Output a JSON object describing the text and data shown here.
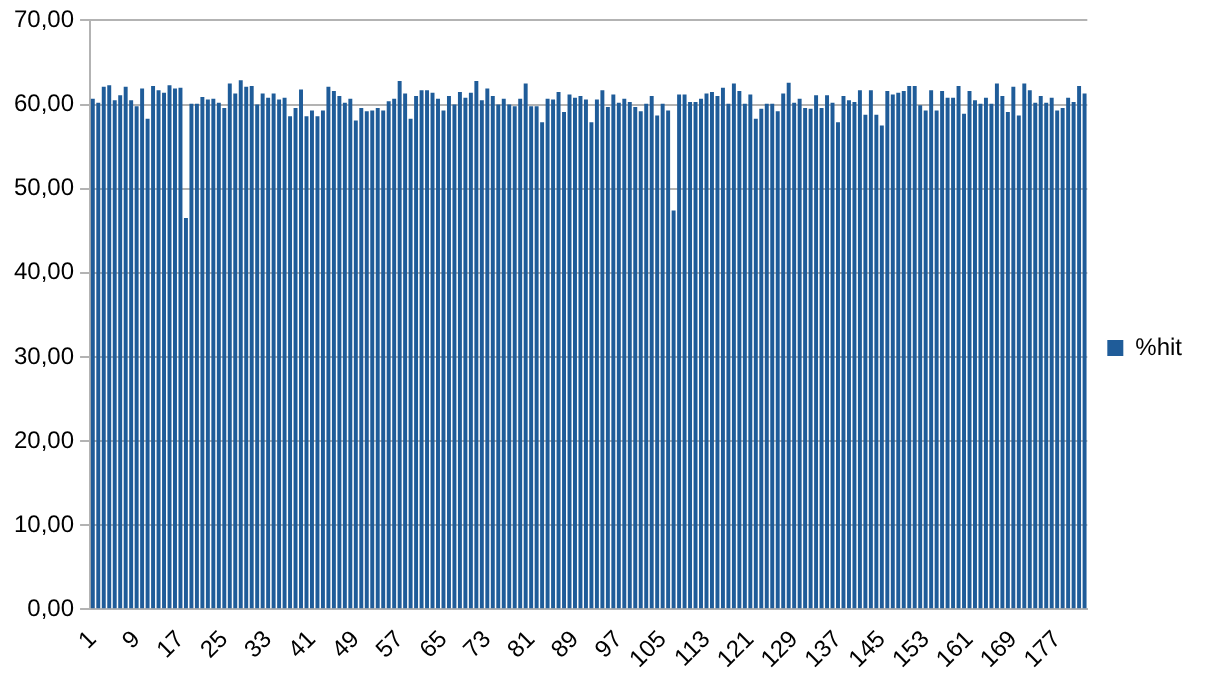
{
  "chart_data": {
    "type": "bar",
    "categories": [
      "1",
      null,
      null,
      null,
      null,
      null,
      null,
      null,
      "9",
      null,
      null,
      null,
      null,
      null,
      null,
      null,
      "17",
      null,
      null,
      null,
      null,
      null,
      null,
      null,
      "25",
      null,
      null,
      null,
      null,
      null,
      null,
      null,
      "33",
      null,
      null,
      null,
      null,
      null,
      null,
      null,
      "41",
      null,
      null,
      null,
      null,
      null,
      null,
      null,
      "49",
      null,
      null,
      null,
      null,
      null,
      null,
      null,
      "57",
      null,
      null,
      null,
      null,
      null,
      null,
      null,
      "65",
      null,
      null,
      null,
      null,
      null,
      null,
      null,
      "73",
      null,
      null,
      null,
      null,
      null,
      null,
      null,
      "81",
      null,
      null,
      null,
      null,
      null,
      null,
      null,
      "89",
      null,
      null,
      null,
      null,
      null,
      null,
      null,
      "97",
      null,
      null,
      null,
      null,
      null,
      null,
      null,
      "105",
      null,
      null,
      null,
      null,
      null,
      null,
      null,
      "113",
      null,
      null,
      null,
      null,
      null,
      null,
      null,
      "121",
      null,
      null,
      null,
      null,
      null,
      null,
      null,
      "129",
      null,
      null,
      null,
      null,
      null,
      null,
      null,
      "137",
      null,
      null,
      null,
      null,
      null,
      null,
      null,
      "145",
      null,
      null,
      null,
      null,
      null,
      null,
      null,
      "153",
      null,
      null,
      null,
      null,
      null,
      null,
      null,
      "161",
      null,
      null,
      null,
      null,
      null,
      null,
      null,
      "169",
      null,
      null,
      null,
      null,
      null,
      null,
      null,
      "177",
      null,
      null,
      null,
      null,
      null
    ],
    "series": [
      {
        "name": "%hit",
        "color": "#1f5c99",
        "values": [
          60.7,
          60.2,
          62.1,
          62.3,
          60.5,
          61.1,
          62.1,
          60.5,
          59.8,
          61.9,
          58.3,
          62.2,
          61.7,
          61.4,
          62.3,
          61.9,
          62.0,
          46.5,
          60.1,
          60.1,
          60.9,
          60.6,
          60.7,
          60.2,
          59.6,
          62.5,
          61.3,
          62.9,
          62.1,
          62.2,
          60.0,
          61.3,
          60.8,
          61.3,
          60.6,
          60.8,
          58.6,
          59.6,
          61.8,
          58.6,
          59.3,
          58.6,
          59.3,
          62.1,
          61.6,
          61.0,
          60.2,
          60.7,
          58.1,
          59.6,
          59.2,
          59.3,
          59.6,
          59.3,
          60.4,
          60.7,
          62.8,
          61.3,
          58.3,
          61.0,
          61.7,
          61.7,
          61.4,
          60.7,
          59.3,
          61.0,
          60.0,
          61.5,
          60.8,
          61.4,
          62.8,
          60.5,
          61.9,
          61.0,
          60.0,
          60.7,
          60.0,
          59.8,
          60.7,
          62.5,
          59.8,
          59.8,
          57.9,
          60.7,
          60.6,
          61.5,
          59.1,
          61.2,
          60.8,
          61.0,
          60.6,
          57.9,
          60.6,
          61.7,
          59.7,
          61.2,
          60.2,
          60.7,
          60.3,
          59.7,
          59.2,
          60.1,
          61.0,
          58.7,
          60.1,
          59.3,
          47.4,
          61.2,
          61.2,
          60.3,
          60.3,
          60.7,
          61.3,
          61.5,
          61.0,
          62.0,
          60.1,
          62.5,
          61.6,
          60.1,
          61.2,
          58.3,
          59.5,
          60.1,
          60.1,
          59.2,
          61.3,
          62.6,
          60.2,
          60.7,
          59.6,
          59.5,
          61.1,
          59.6,
          61.1,
          60.2,
          57.9,
          61.0,
          60.5,
          60.3,
          61.7,
          58.8,
          61.7,
          58.8,
          57.5,
          61.6,
          61.2,
          61.4,
          61.6,
          62.2,
          62.2,
          59.9,
          59.3,
          61.7,
          59.3,
          61.6,
          60.8,
          60.8,
          62.2,
          58.9,
          61.6,
          60.5,
          60.1,
          60.8,
          60.1,
          62.5,
          61.0,
          59.1,
          62.1,
          58.7,
          62.5,
          61.7,
          60.2,
          61.0,
          60.2,
          60.8,
          59.3,
          59.6,
          60.8,
          60.3,
          62.2,
          61.3
        ]
      }
    ],
    "ylim": [
      0,
      70
    ],
    "yticks": [
      {
        "value": 0,
        "label": "0,00"
      },
      {
        "value": 10,
        "label": "10,00"
      },
      {
        "value": 20,
        "label": "20,00"
      },
      {
        "value": 30,
        "label": "30,00"
      },
      {
        "value": 40,
        "label": "40,00"
      },
      {
        "value": 50,
        "label": "50,00"
      },
      {
        "value": 60,
        "label": "60,00"
      },
      {
        "value": 70,
        "label": "70,00"
      }
    ],
    "grid": "y",
    "legend": "right"
  }
}
